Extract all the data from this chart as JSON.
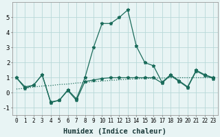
{
  "title": "",
  "xlabel": "Humidex (Indice chaleur)",
  "ylabel": "",
  "bg_color": "#e8f4f4",
  "grid_color": "#b8d8d8",
  "line_color": "#1a6b5a",
  "x": [
    0,
    1,
    2,
    3,
    4,
    5,
    6,
    7,
    8,
    9,
    10,
    11,
    12,
    13,
    14,
    15,
    16,
    17,
    18,
    19,
    20,
    21,
    22,
    23
  ],
  "line1": [
    1.0,
    0.3,
    0.5,
    1.2,
    -0.6,
    -0.5,
    0.2,
    -0.4,
    1.0,
    3.0,
    4.6,
    4.6,
    5.0,
    5.5,
    3.1,
    2.0,
    1.8,
    0.7,
    1.2,
    0.8,
    0.4,
    1.5,
    1.2,
    1.0
  ],
  "line2": [
    1.0,
    0.4,
    0.5,
    1.2,
    -0.65,
    -0.5,
    0.15,
    -0.5,
    0.75,
    0.85,
    0.95,
    1.0,
    1.0,
    1.0,
    1.0,
    1.0,
    1.0,
    0.65,
    1.15,
    0.75,
    0.35,
    1.45,
    1.15,
    0.95
  ],
  "line3": [
    0.25,
    0.3,
    0.38,
    0.45,
    0.48,
    0.55,
    0.58,
    0.65,
    0.68,
    0.75,
    0.78,
    0.82,
    0.86,
    0.9,
    0.93,
    0.95,
    0.97,
    0.98,
    0.99,
    1.0,
    1.0,
    1.0,
    1.0,
    1.0
  ],
  "ylim": [
    -1.5,
    6.0
  ],
  "yticks": [
    -1,
    0,
    1,
    2,
    3,
    4,
    5
  ],
  "xtick_fontsize": 5.5,
  "ytick_fontsize": 6.5,
  "xlabel_fontsize": 7.5
}
